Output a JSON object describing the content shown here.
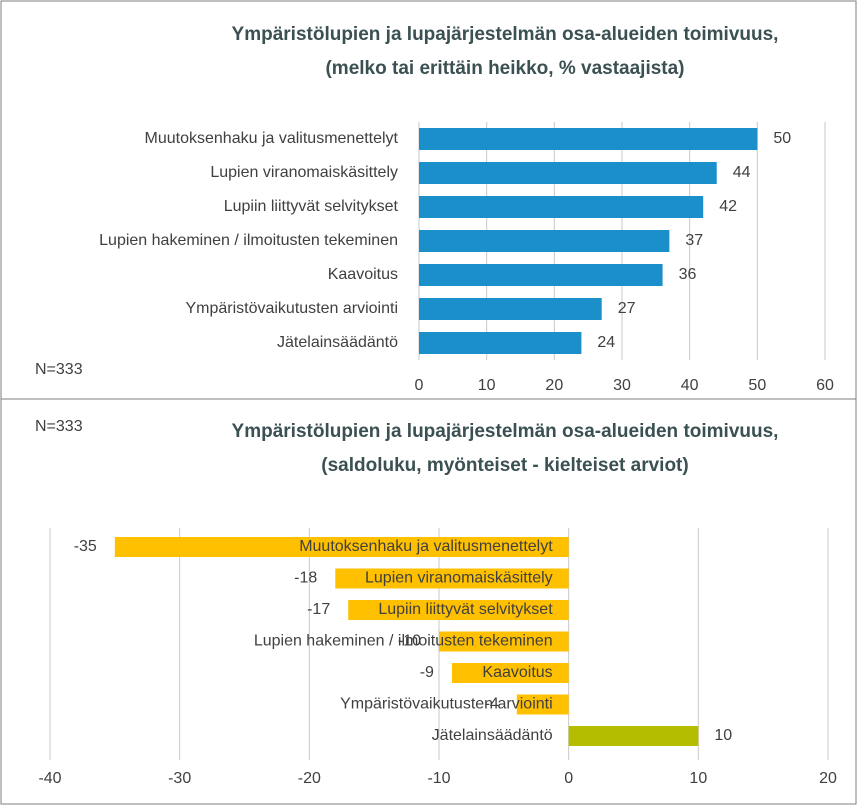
{
  "chart_data": [
    {
      "type": "bar",
      "orientation": "horizontal",
      "title": "Ympäristölupien ja lupajärjestelmän osa-alueiden toimivuus,",
      "subtitle": "(melko tai erittäin heikko, % vastaajista)",
      "annotation": "N=333",
      "categories": [
        "Muutoksenhaku ja valitusmenettelyt",
        "Lupien viranomaiskäsittely",
        "Lupiin liittyvät selvitykset",
        "Lupien hakeminen / ilmoitusten tekeminen",
        "Kaavoitus",
        "Ympäristövaikutusten arviointi",
        "Jätelainsäädäntö"
      ],
      "values": [
        50,
        44,
        42,
        37,
        36,
        27,
        24
      ],
      "color": "#1a8fc9",
      "xlim": [
        0,
        60
      ],
      "xticks": [
        0,
        10,
        20,
        30,
        40,
        50,
        60
      ],
      "grid": true
    },
    {
      "type": "bar",
      "orientation": "horizontal",
      "title": "Ympäristölupien ja lupajärjestelmän osa-alueiden toimivuus,",
      "subtitle": "(saldoluku, myönteiset - kielteiset arviot)",
      "annotation": "N=333",
      "categories": [
        "Muutoksenhaku ja valitusmenettelyt",
        "Lupien viranomaiskäsittely",
        "Lupiin liittyvät selvitykset",
        "Lupien hakeminen / ilmoitusten tekeminen",
        "Kaavoitus",
        "Ympäristövaikutusten arviointi",
        "Jätelainsäädäntö"
      ],
      "values": [
        -35,
        -18,
        -17,
        -10,
        -9,
        -4,
        10
      ],
      "colors": [
        "#ffc000",
        "#ffc000",
        "#ffc000",
        "#ffc000",
        "#ffc000",
        "#ffc000",
        "#b5bd00"
      ],
      "xlim": [
        -40,
        20
      ],
      "xticks": [
        -40,
        -30,
        -20,
        -10,
        0,
        10,
        20
      ],
      "grid": true
    }
  ]
}
